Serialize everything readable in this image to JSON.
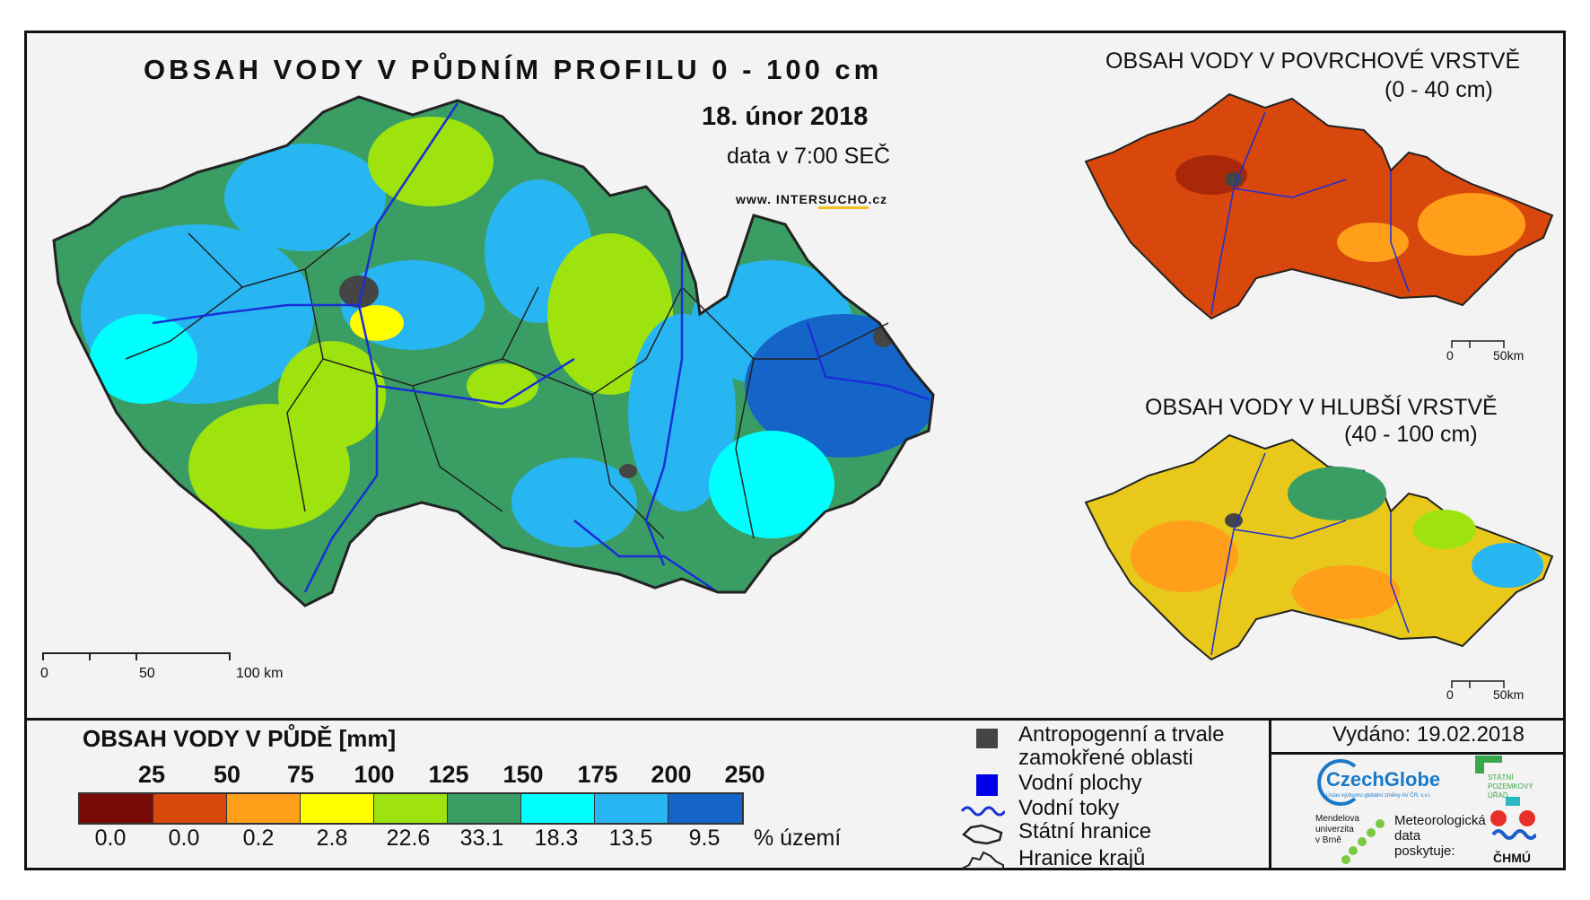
{
  "header": {
    "title": "OBSAH VODY V PŮDNÍM PROFILU 0 - 100 cm",
    "date": "18. únor 2018",
    "time": "data v 7:00 SEČ",
    "url_prefix": "www. INTER",
    "url_accent": "SUCHO",
    "url_suffix": ".cz"
  },
  "main_scale": {
    "labels": [
      "0",
      "50",
      "100 km"
    ]
  },
  "insets": [
    {
      "title": "OBSAH VODY V POVRCHOVÉ VRSTVĚ",
      "subtitle": "(0 - 40 cm)",
      "scale": [
        "0",
        "50km"
      ]
    },
    {
      "title": "OBSAH VODY V HLUBŠÍ VRSTVĚ",
      "subtitle": "(40 - 100 cm)",
      "scale": [
        "0",
        "50km"
      ]
    }
  ],
  "legend": {
    "title": "OBSAH VODY V PŮDĚ [mm]",
    "breaks": [
      "25",
      "50",
      "75",
      "100",
      "125",
      "150",
      "175",
      "200",
      "250"
    ],
    "classes": [
      {
        "color": "#7a0a06",
        "percent": "0.0"
      },
      {
        "color": "#d8470c",
        "percent": "0.0"
      },
      {
        "color": "#ff9f1a",
        "percent": "0.2"
      },
      {
        "color": "#ffff00",
        "percent": "2.8"
      },
      {
        "color": "#9ee30e",
        "percent": "22.6"
      },
      {
        "color": "#3a9e64",
        "percent": "33.1"
      },
      {
        "color": "#00ffff",
        "percent": "18.3"
      },
      {
        "color": "#27b6f2",
        "percent": "13.5"
      },
      {
        "color": "#1565c8",
        "percent": "9.5"
      }
    ],
    "percent_unit": "% území"
  },
  "symbols": {
    "anthropogenic_1": "Antropogenní a trvale",
    "anthropogenic_2": "zamokřené oblasti",
    "water_bodies": "Vodní plochy",
    "rivers": "Vodní toky",
    "state_border": "Státní hranice",
    "region_border": "Hranice krajů"
  },
  "issued": "Vydáno: 19.02.2018",
  "logos": {
    "czechglobe": "CzechGlobe",
    "czechglobe_sub": "Ústav výzkumu globální změny AV ČR, v.v.i.",
    "spu_1": "STÁTNÍ",
    "spu_2": "POZEMKOVÝ",
    "spu_3": "ÚŘAD",
    "mendel_1": "Mendelova",
    "mendel_2": "univerzita",
    "mendel_3": "v Brně",
    "meteo_1": "Meteorologická",
    "meteo_2": "data",
    "meteo_3": "poskytuje:",
    "chmu": "ČHMÚ"
  },
  "map_colors": {
    "main_fill": "#3a9e64",
    "surface_fill": "#d8470c",
    "deep_fill": "#e8c81a",
    "river": "#1a2fd6",
    "region_line": "#222222",
    "urban": "#454545"
  }
}
